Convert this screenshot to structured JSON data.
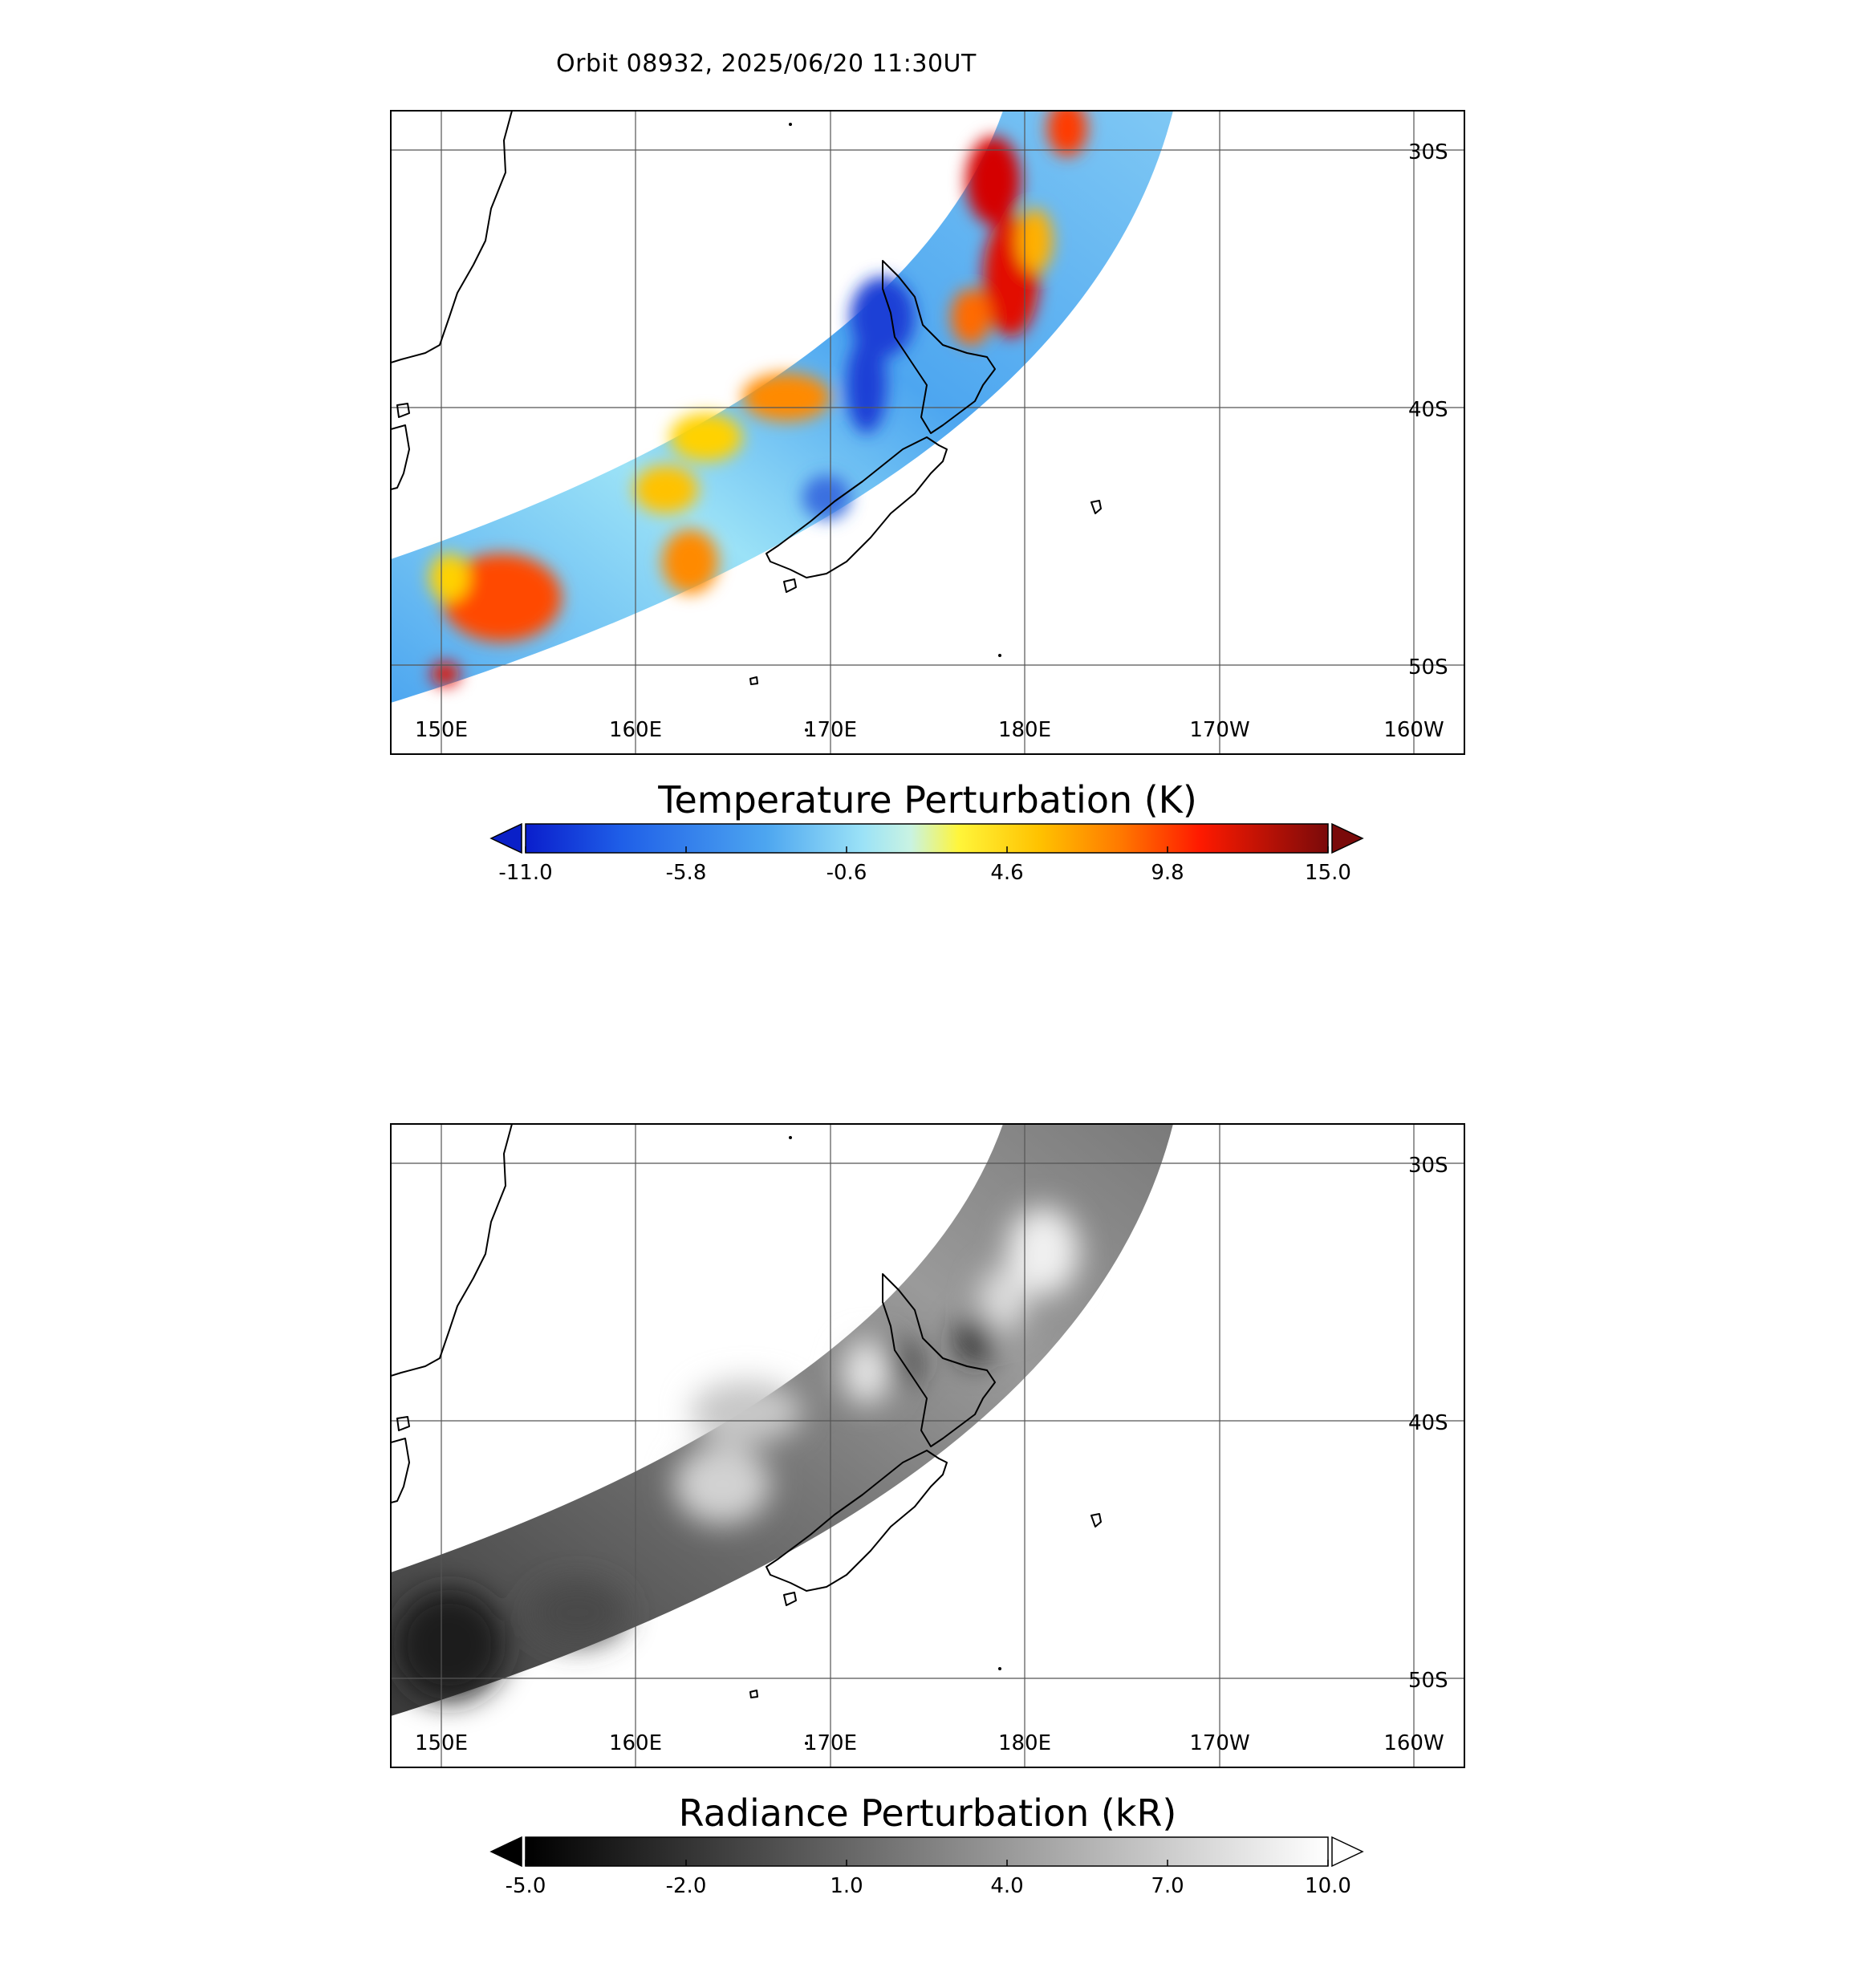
{
  "header": {
    "title": "Orbit 08932, 2025/06/20 11:30UT"
  },
  "map": {
    "lon_labels": [
      "150E",
      "160E",
      "170E",
      "180E",
      "170W",
      "160W"
    ],
    "lat_labels": [
      "30S",
      "40S",
      "50S"
    ]
  },
  "panels": [
    {
      "id": "temperature",
      "colorbar": {
        "label": "Temperature Perturbation (K)",
        "ticks": [
          "-11.0",
          "-5.8",
          "-0.6",
          "4.6",
          "9.8",
          "15.0"
        ],
        "range": [
          -11.0,
          15.0
        ],
        "low_extend_color": "#0a20c8",
        "high_extend_color": "#7a0a0a"
      }
    },
    {
      "id": "radiance",
      "colorbar": {
        "label": "Radiance Perturbation (kR)",
        "ticks": [
          "-5.0",
          "-2.0",
          "1.0",
          "4.0",
          "7.0",
          "10.0"
        ],
        "range": [
          -5.0,
          10.0
        ],
        "low_extend_color": "#000000",
        "high_extend_color": "#ffffff"
      }
    }
  ],
  "colors": {
    "temperature_scale": [
      "#0a1ecc",
      "#1f5fe8",
      "#4da6f0",
      "#9be2f7",
      "#c9f3e2",
      "#fff53a",
      "#ffc200",
      "#ff7a00",
      "#ff1a00",
      "#d00000",
      "#7a0a0a"
    ],
    "radiance_scale": [
      "#000000",
      "#ffffff"
    ],
    "gridline": "#555555",
    "coastline": "#000000"
  }
}
